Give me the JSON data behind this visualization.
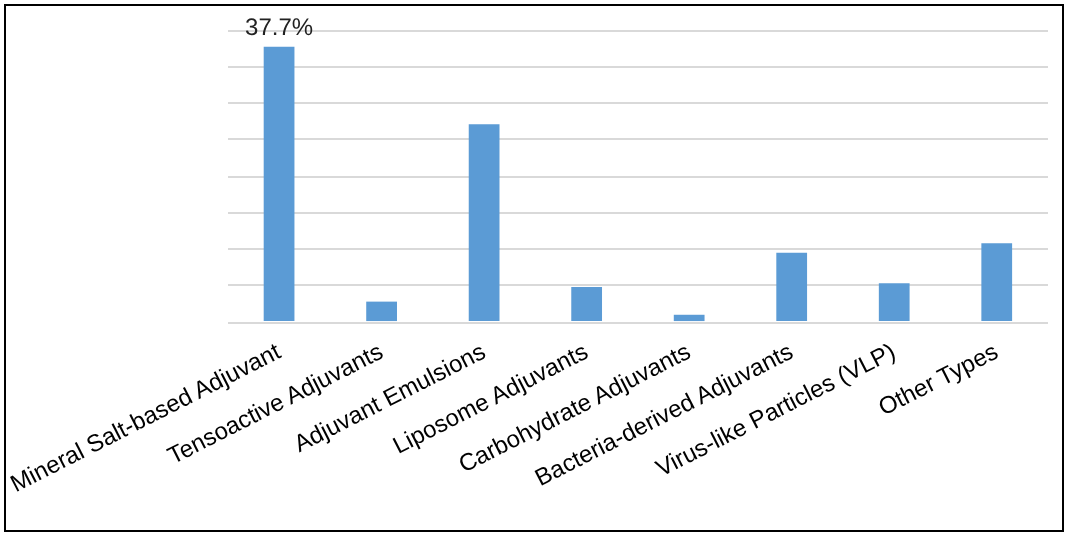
{
  "chart_data": {
    "type": "bar",
    "categories": [
      "Mineral Salt-based Adjuvant",
      "Tensoactive Adjuvants",
      "Adjuvant Emulsions",
      "Liposome Adjuvants",
      "Carbohydrate Adjuvants",
      "Bacteria-derived Adjuvants",
      "Virus-like Particles (VLP)",
      "Other Types"
    ],
    "values": [
      37.7,
      2.8,
      27.1,
      4.8,
      1.0,
      9.5,
      5.3,
      10.8
    ],
    "value_labels": [
      "37.7%",
      null,
      null,
      null,
      null,
      null,
      null,
      null
    ],
    "color": "#5b9bd5",
    "grid": "y",
    "legend": false
  }
}
